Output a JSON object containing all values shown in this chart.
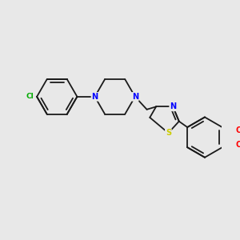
{
  "bg_color": "#e8e8e8",
  "bond_color": "#1a1a1a",
  "N_color": "#0000ff",
  "S_color": "#cccc00",
  "O_color": "#ff0000",
  "Cl_color": "#00aa00",
  "lw": 1.3,
  "fontsize": 7.0,
  "fig_w": 3.0,
  "fig_h": 3.0,
  "dpi": 100,
  "xlim": [
    -5.5,
    3.5
  ],
  "ylim": [
    -3.0,
    2.2
  ]
}
